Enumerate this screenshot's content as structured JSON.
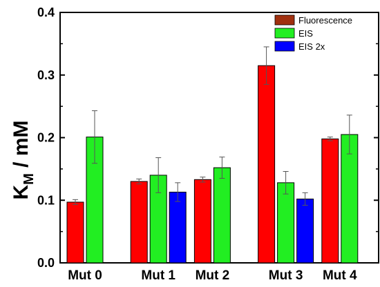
{
  "chart_data": {
    "type": "bar",
    "categories": [
      "Mut 0",
      "Mut 1",
      "Mut 2",
      "Mut 3",
      "Mut 4"
    ],
    "series": [
      {
        "name": "Fluorescence",
        "color": "#ff0000",
        "legend_color": "#a0300f",
        "values": [
          0.097,
          0.13,
          0.133,
          0.315,
          0.198
        ],
        "errors": [
          0.004,
          0.004,
          0.004,
          0.03,
          0.003
        ]
      },
      {
        "name": "EIS",
        "color": "#22ee22",
        "legend_color": "#22ee22",
        "values": [
          0.201,
          0.14,
          0.152,
          0.128,
          0.205
        ],
        "errors": [
          0.042,
          0.028,
          0.017,
          0.018,
          0.031
        ]
      },
      {
        "name": "EIS 2x",
        "color": "#0000ff",
        "legend_color": "#0000ff",
        "values": [
          null,
          0.113,
          null,
          0.102,
          null
        ],
        "errors": [
          null,
          0.015,
          null,
          0.01,
          null
        ]
      }
    ],
    "title": "",
    "xlabel": "",
    "ylabel_main": "K",
    "ylabel_sub": "M",
    "ylabel_rest": " / mM",
    "ylim": [
      0.0,
      0.4
    ],
    "yticks": [
      "0.0",
      "0.1",
      "0.2",
      "0.3",
      "0.4"
    ],
    "grid": false,
    "legend_position": "top-right"
  }
}
